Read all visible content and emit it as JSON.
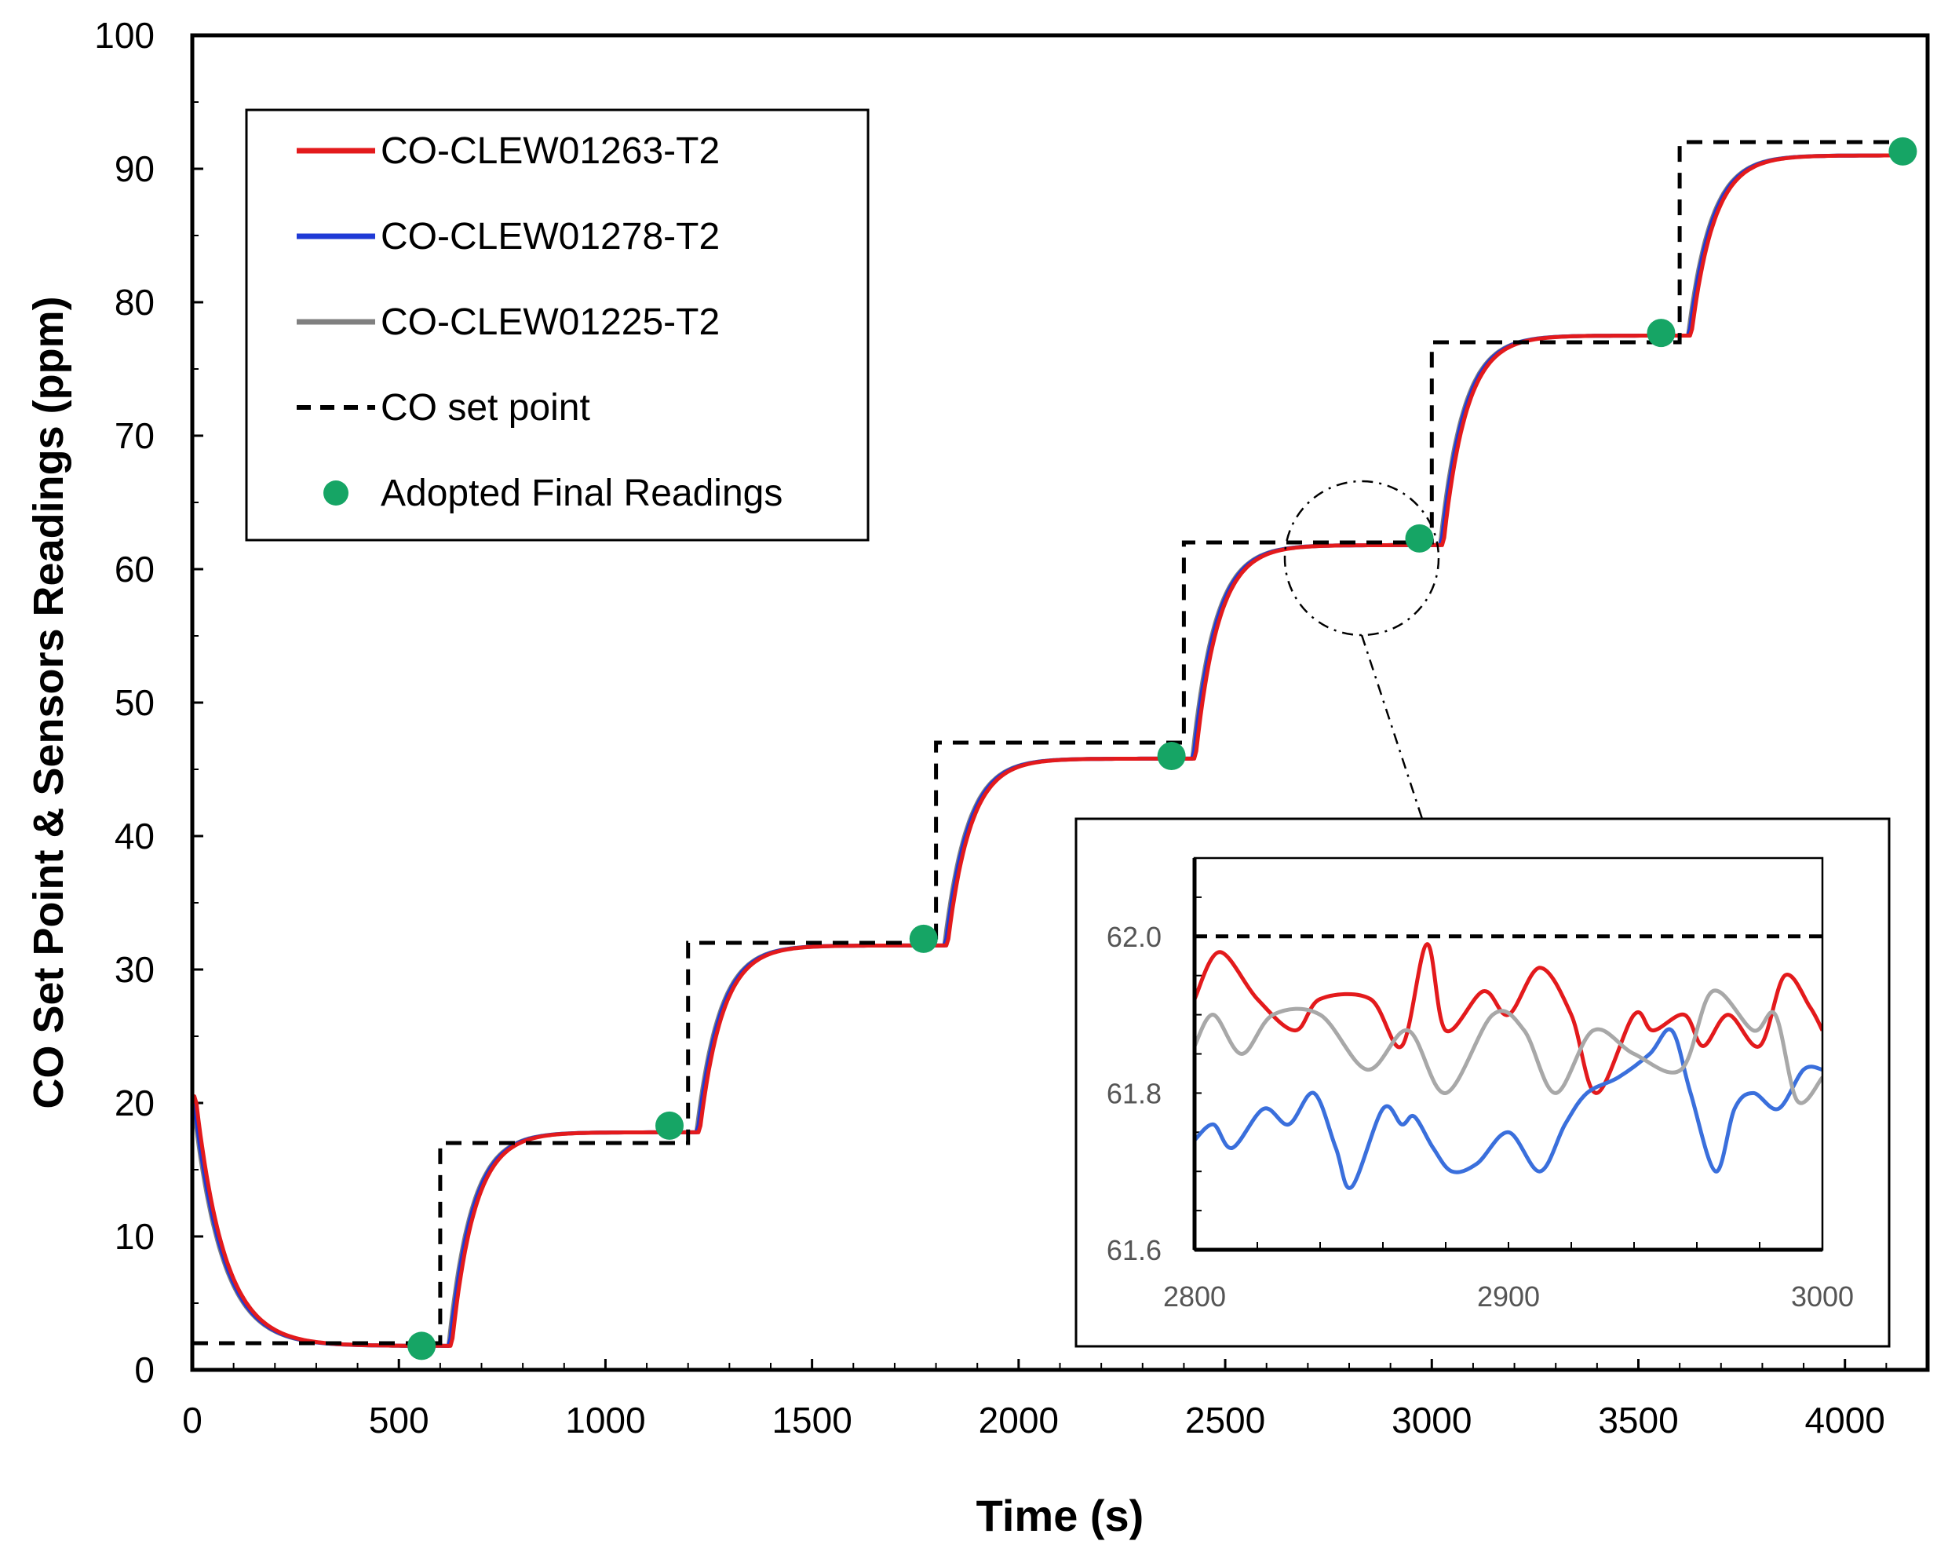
{
  "chart_data": {
    "type": "line",
    "main": {
      "xlabel": "Time (s)",
      "ylabel": "CO Set Point & Sensors Readings (ppm)",
      "xlim": [
        0,
        4200
      ],
      "ylim": [
        0,
        100
      ],
      "xticks": [
        0,
        500,
        1000,
        1500,
        2000,
        2500,
        3000,
        3500,
        4000
      ],
      "yticks": [
        0,
        10,
        20,
        30,
        40,
        50,
        60,
        70,
        80,
        90,
        100
      ],
      "setpoint": {
        "name": "CO set  point",
        "color": "#000000",
        "style": "dashed",
        "x": [
          0,
          600,
          600,
          1200,
          1200,
          1800,
          1800,
          2400,
          2400,
          3000,
          3000,
          3600,
          3600,
          4150
        ],
        "y": [
          2,
          2,
          17,
          17,
          32,
          32,
          47,
          47,
          62,
          62,
          77,
          77,
          92,
          92
        ]
      },
      "sensor_steps": {
        "start_value": 20.5,
        "step_times": [
          0,
          600,
          1200,
          1800,
          2400,
          3000,
          3600
        ],
        "levels": [
          1.8,
          17.8,
          31.8,
          45.8,
          61.8,
          77.5,
          91.0
        ],
        "end_time": 4150
      },
      "series": [
        {
          "name": "CO-CLEW01263-T2",
          "color": "#e31a1c",
          "lag_s": 8
        },
        {
          "name": "CO-CLEW01278-T2",
          "color": "#1f3ad6",
          "lag_s": 3
        },
        {
          "name": "CO-CLEW01225-T2",
          "color": "#808080",
          "lag_s": 0
        }
      ],
      "adopted_final_readings": {
        "name": "Adopted Final Readings",
        "color": "#16a565",
        "x": [
          555,
          1155,
          1770,
          2370,
          2970,
          3555,
          4140
        ],
        "y": [
          1.8,
          18.3,
          32.3,
          46.0,
          62.3,
          77.7,
          91.3
        ]
      }
    },
    "inset": {
      "xlim": [
        2800,
        3000
      ],
      "ylim": [
        61.6,
        62.1
      ],
      "xticks": [
        2800,
        2900,
        3000
      ],
      "yticks": [
        61.6,
        61.8,
        62.0
      ],
      "xtick_labels": [
        "2800",
        "2900",
        "3000"
      ],
      "ytick_labels": [
        "61.6",
        "61.8",
        "62.0"
      ],
      "setpoint_value": 62.0,
      "series": [
        {
          "name": "CO-CLEW01263-T2",
          "color": "#e31a1c",
          "x": [
            2800,
            2808,
            2820,
            2832,
            2840,
            2856,
            2866,
            2874,
            2880,
            2892,
            2900,
            2910,
            2920,
            2928,
            2940,
            2946,
            2956,
            2962,
            2970,
            2980,
            2988,
            2996,
            3000
          ],
          "y": [
            61.92,
            61.98,
            61.92,
            61.88,
            61.92,
            61.92,
            61.86,
            61.99,
            61.88,
            61.93,
            61.9,
            61.96,
            61.9,
            61.8,
            61.9,
            61.88,
            61.9,
            61.86,
            61.9,
            61.86,
            61.95,
            61.91,
            61.88
          ]
        },
        {
          "name": "CO-CLEW01278-T2",
          "color": "#3a6fdc",
          "x": [
            2800,
            2806,
            2812,
            2822,
            2830,
            2838,
            2845,
            2850,
            2860,
            2866,
            2870,
            2876,
            2882,
            2890,
            2900,
            2910,
            2918,
            2925,
            2935,
            2945,
            2952,
            2958,
            2966,
            2972,
            2978,
            2986,
            2994,
            3000
          ],
          "y": [
            61.74,
            61.76,
            61.73,
            61.78,
            61.76,
            61.8,
            61.73,
            61.68,
            61.78,
            61.76,
            61.77,
            61.73,
            61.7,
            61.71,
            61.75,
            61.7,
            61.76,
            61.8,
            61.82,
            61.85,
            61.88,
            61.8,
            61.7,
            61.78,
            61.8,
            61.78,
            61.83,
            61.83
          ]
        },
        {
          "name": "CO-CLEW01225-T2",
          "color": "#a8a8a8",
          "x": [
            2800,
            2806,
            2815,
            2825,
            2840,
            2855,
            2868,
            2880,
            2895,
            2905,
            2915,
            2927,
            2940,
            2955,
            2965,
            2978,
            2985,
            2992,
            3000
          ],
          "y": [
            61.86,
            61.9,
            61.85,
            61.9,
            61.9,
            61.83,
            61.88,
            61.8,
            61.9,
            61.88,
            61.8,
            61.88,
            61.85,
            61.83,
            61.93,
            61.88,
            61.9,
            61.79,
            61.82
          ]
        }
      ]
    },
    "legend": [
      {
        "label": "CO-CLEW01263-T2",
        "kind": "line",
        "color": "#e31a1c"
      },
      {
        "label": "CO-CLEW01278-T2",
        "kind": "line",
        "color": "#1f3ad6"
      },
      {
        "label": "CO-CLEW01225-T2",
        "kind": "line",
        "color": "#808080"
      },
      {
        "label": "CO set  point",
        "kind": "dashed",
        "color": "#000000"
      },
      {
        "label": "Adopted Final Readings",
        "kind": "marker",
        "color": "#16a565"
      }
    ],
    "legend_position": "top-left",
    "inset_position": "bottom-right"
  }
}
